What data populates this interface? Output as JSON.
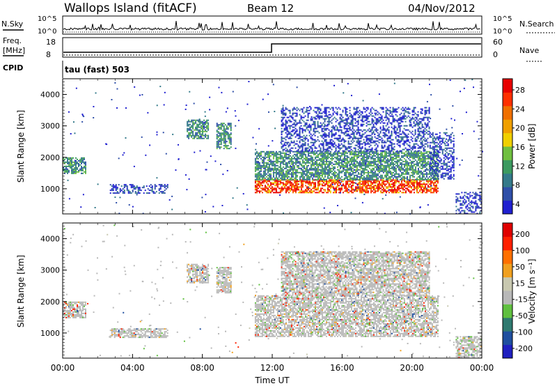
{
  "header": {
    "station": "Wallops Island (fitACF)",
    "beam": "Beam 12",
    "date": "04/Nov/2012"
  },
  "strip": {
    "nsky_label": "N.Sky",
    "nsky_ticks": [
      "10^5",
      "10^0"
    ],
    "nsearch_label": "N.Search",
    "nsearch_ticks": [
      "10^5",
      "10^0"
    ],
    "freq_label": "Freq.",
    "freq_unit": "[MHz]",
    "freq_ticks": [
      "18",
      "8"
    ],
    "nave_label": "Nave",
    "nave_ticks": [
      "60",
      "0"
    ],
    "cpid_label": "CPID",
    "cpid_value": "tau (fast) 503"
  },
  "colors": {
    "power": [
      "#2020d0",
      "#2f4fa8",
      "#347a8a",
      "#3c9a60",
      "#70c040",
      "#f0d000",
      "#f0a000",
      "#f07000",
      "#ff3000",
      "#e80000"
    ],
    "velocity": [
      "#2020c0",
      "#1f4f9f",
      "#2f7a70",
      "#60c040",
      "#b8b8b8",
      "#c8c8b0",
      "#f0a020",
      "#ff7000",
      "#ff2000",
      "#e00000"
    ]
  },
  "chart_data": [
    {
      "type": "heatmap",
      "name": "power",
      "ylabel": "Slant Range [km]",
      "ylim": [
        200,
        4500
      ],
      "yticks": [
        "1000",
        "2000",
        "3000",
        "4000"
      ],
      "xlim_hours": [
        0,
        24
      ],
      "colorbar_label": "Power [dB]",
      "colorbar_ticks": [
        "28",
        "24",
        "20",
        "16",
        "12",
        "8",
        "4"
      ],
      "regions": [
        {
          "t": [
            0.0,
            1.3
          ],
          "r": [
            1500,
            2000
          ],
          "level": "mid"
        },
        {
          "t": [
            2.7,
            6.0
          ],
          "r": [
            850,
            1150
          ],
          "level": "low"
        },
        {
          "t": [
            7.1,
            8.3
          ],
          "r": [
            2600,
            3200
          ],
          "level": "mid"
        },
        {
          "t": [
            8.8,
            9.6
          ],
          "r": [
            2300,
            3100
          ],
          "level": "mid"
        },
        {
          "t": [
            11.0,
            21.5
          ],
          "r": [
            900,
            1300
          ],
          "level": "high"
        },
        {
          "t": [
            11.0,
            21.5
          ],
          "r": [
            1300,
            2200
          ],
          "level": "mid"
        },
        {
          "t": [
            12.5,
            21.0
          ],
          "r": [
            2200,
            3600
          ],
          "level": "low"
        },
        {
          "t": [
            21.0,
            22.4
          ],
          "r": [
            1300,
            2800
          ],
          "level": "low"
        },
        {
          "t": [
            22.5,
            24.0
          ],
          "r": [
            200,
            900
          ],
          "level": "low"
        }
      ]
    },
    {
      "type": "heatmap",
      "name": "velocity",
      "xlabel": "Time UT",
      "ylabel": "Slant Range [km]",
      "ylim": [
        200,
        4500
      ],
      "yticks": [
        "1000",
        "2000",
        "3000",
        "4000"
      ],
      "xticks": [
        "00:00",
        "04:00",
        "08:00",
        "12:00",
        "16:00",
        "20:00",
        "00:00"
      ],
      "colorbar_label": "Velocity [m s⁻¹]",
      "colorbar_ticks": [
        "200",
        "100",
        "50",
        "15",
        "-15",
        "-50",
        "-100",
        "-200"
      ],
      "regions": [
        {
          "t": [
            0.0,
            1.3
          ],
          "r": [
            1500,
            2000
          ],
          "level": "zero"
        },
        {
          "t": [
            2.7,
            6.0
          ],
          "r": [
            850,
            1150
          ],
          "level": "zero"
        },
        {
          "t": [
            7.1,
            8.3
          ],
          "r": [
            2600,
            3200
          ],
          "level": "zero"
        },
        {
          "t": [
            8.8,
            9.6
          ],
          "r": [
            2300,
            3100
          ],
          "level": "zero"
        },
        {
          "t": [
            11.0,
            21.5
          ],
          "r": [
            900,
            2200
          ],
          "level": "zero"
        },
        {
          "t": [
            12.5,
            21.0
          ],
          "r": [
            2200,
            3600
          ],
          "level": "zero"
        },
        {
          "t": [
            22.5,
            24.0
          ],
          "r": [
            200,
            900
          ],
          "level": "zero"
        }
      ]
    }
  ]
}
